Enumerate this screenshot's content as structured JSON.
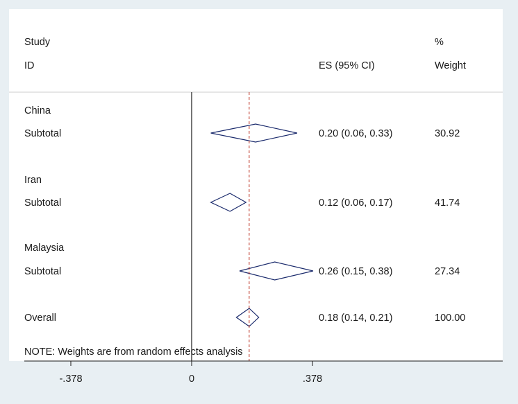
{
  "chart_data": {
    "type": "forest",
    "header": {
      "study_line1": "Study",
      "study_line2": "ID",
      "es_label": "ES (95% CI)",
      "weight_line1": "%",
      "weight_line2": "Weight"
    },
    "groups": [
      {
        "name": "China",
        "subtotal_label": "Subtotal",
        "es": 0.2,
        "lo": 0.06,
        "hi": 0.33,
        "es_text": "0.20 (0.06, 0.33)",
        "weight": "30.92"
      },
      {
        "name": "Iran",
        "subtotal_label": "Subtotal",
        "es": 0.12,
        "lo": 0.06,
        "hi": 0.17,
        "es_text": "0.12 (0.06, 0.17)",
        "weight": "41.74"
      },
      {
        "name": "Malaysia",
        "subtotal_label": "Subtotal",
        "es": 0.26,
        "lo": 0.15,
        "hi": 0.38,
        "es_text": "0.26 (0.15, 0.38)",
        "weight": "27.34"
      }
    ],
    "overall": {
      "label": "Overall",
      "es": 0.18,
      "lo": 0.14,
      "hi": 0.21,
      "es_text": "0.18 (0.14, 0.21)",
      "weight": "100.00"
    },
    "note": "NOTE: Weights are from random effects analysis",
    "x_ticks": [
      {
        "value": -0.378,
        "label": "-.378"
      },
      {
        "value": 0,
        "label": "0"
      },
      {
        "value": 0.378,
        "label": ".378"
      }
    ],
    "null_line": 0,
    "overall_line_color": "#c0392b",
    "diamond_color": "#1a2a6c"
  }
}
